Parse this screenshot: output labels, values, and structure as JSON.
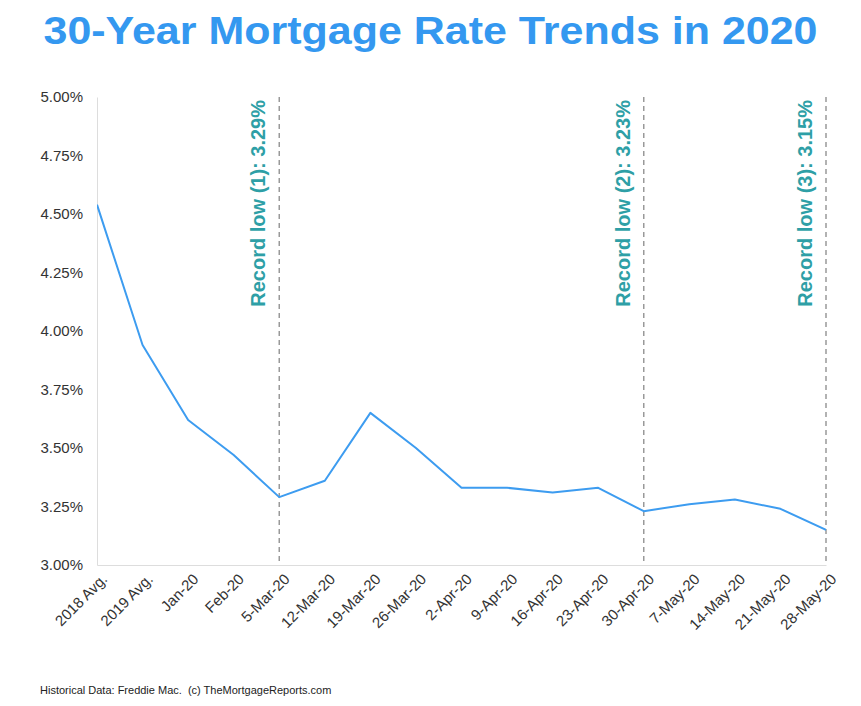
{
  "chart_data": {
    "type": "line",
    "title": "30-Year Mortgage Rate Trends in 2020",
    "categories": [
      "2018 Avg.",
      "2019 Avg.",
      "Jan-20",
      "Feb-20",
      "5-Mar-20",
      "12-Mar-20",
      "19-Mar-20",
      "26-Mar-20",
      "2-Apr-20",
      "9-Apr-20",
      "16-Apr-20",
      "23-Apr-20",
      "30-Apr-20",
      "7-May-20",
      "14-May-20",
      "21-May-20",
      "28-May-20"
    ],
    "values": [
      4.54,
      3.94,
      3.62,
      3.47,
      3.29,
      3.36,
      3.65,
      3.5,
      3.33,
      3.33,
      3.31,
      3.33,
      3.23,
      3.26,
      3.28,
      3.24,
      3.15
    ],
    "color": "#3d9cf0",
    "ylim": [
      3,
      5
    ],
    "yticks": [
      {
        "value": 3,
        "label": "3.00%"
      },
      {
        "value": 3.25,
        "label": "3.25%"
      },
      {
        "value": 3.5,
        "label": "3.50%"
      },
      {
        "value": 3.75,
        "label": "3.75%"
      },
      {
        "value": 4,
        "label": "4.00%"
      },
      {
        "value": 4.25,
        "label": "4.25%"
      },
      {
        "value": 4.5,
        "label": "4.50%"
      },
      {
        "value": 4.75,
        "label": "4.75%"
      },
      {
        "value": 5,
        "label": "5.00%"
      }
    ],
    "grid": false,
    "annotations": [
      {
        "x": "5-Mar-20",
        "text": "Record low (1): 3.29%"
      },
      {
        "x": "30-Apr-20",
        "text": "Record low (2): 3.23%"
      },
      {
        "x": "28-May-20",
        "text": "Record low (3): 3.15%"
      }
    ],
    "source": "Historical Data: Freddie Mac.  (c) TheMortgageReports.com"
  }
}
